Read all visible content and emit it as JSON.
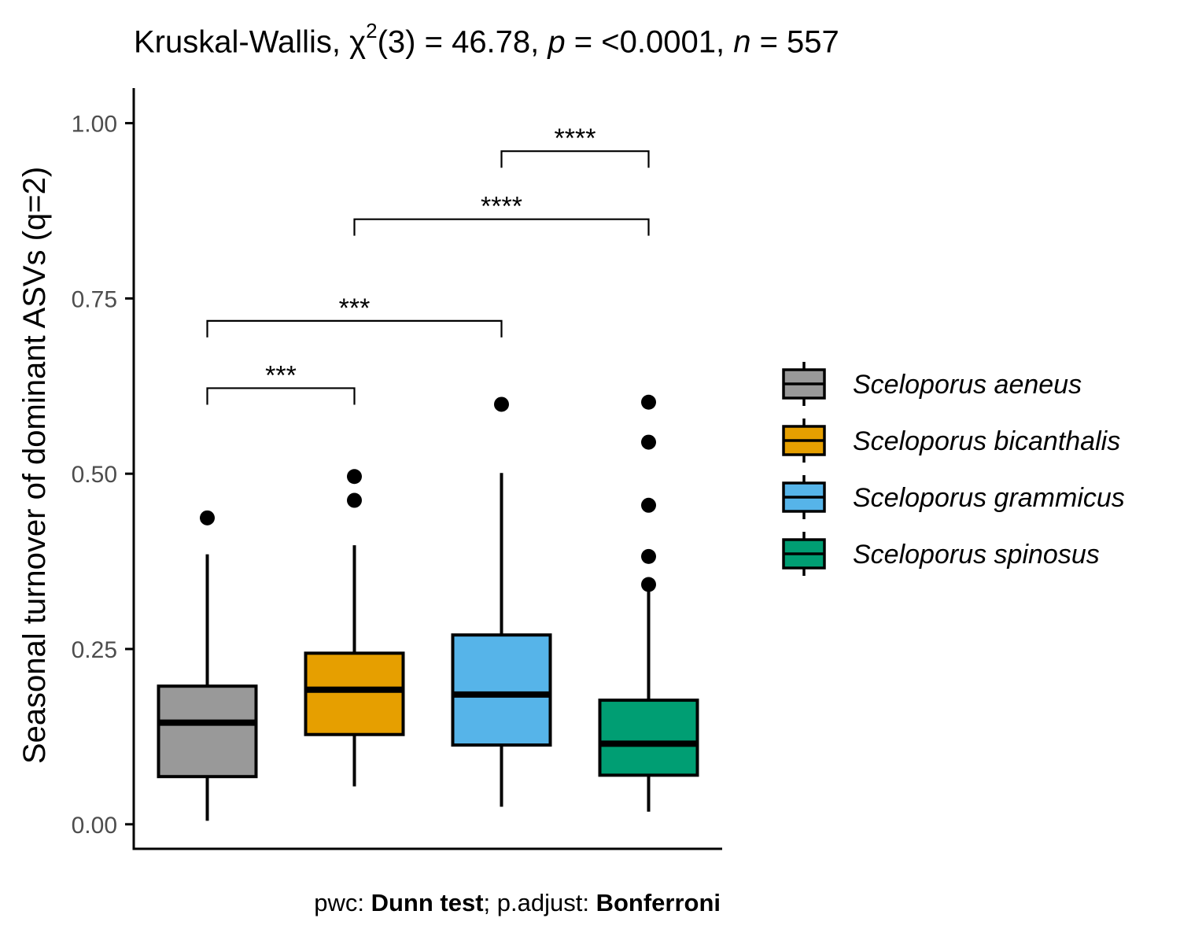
{
  "title": {
    "test_name": "Kruskal-Wallis,",
    "chi_symbol": "χ",
    "chi_sup": "2",
    "df_text": "(3) = 46.78,",
    "p_symbol": "p",
    "p_text": "= <0.0001,",
    "n_symbol": "n",
    "n_text": "= 557"
  },
  "caption": {
    "pwc_label": "pwc:",
    "pwc_value": "Dunn test",
    "adjust_label": "; p.adjust:",
    "adjust_value": "Bonferroni"
  },
  "chart_data": {
    "type": "boxplot",
    "ylabel": "Seasonal turnover of dominant ASVs (q=2)",
    "xlabel": "",
    "ylim": [
      -0.035,
      1.05
    ],
    "yticks": [
      0.0,
      0.25,
      0.5,
      0.75,
      1.0
    ],
    "ytick_labels": [
      "0.00",
      "0.25",
      "0.50",
      "0.75",
      "1.00"
    ],
    "grid": false,
    "legend_position": "right",
    "groups": [
      {
        "name": "Sceloporus aeneus",
        "color": "#999999",
        "whisker_low": 0.005,
        "q1": 0.068,
        "median": 0.145,
        "q3": 0.197,
        "whisker_high": 0.385,
        "outliers": [
          0.437
        ]
      },
      {
        "name": "Sceloporus bicanthalis",
        "color": "#E69F00",
        "whisker_low": 0.054,
        "q1": 0.128,
        "median": 0.192,
        "q3": 0.244,
        "whisker_high": 0.398,
        "outliers": [
          0.462,
          0.496
        ]
      },
      {
        "name": "Sceloporus grammicus",
        "color": "#56B4E9",
        "whisker_low": 0.025,
        "q1": 0.113,
        "median": 0.185,
        "q3": 0.27,
        "whisker_high": 0.501,
        "outliers": [
          0.599
        ]
      },
      {
        "name": "Sceloporus spinosus",
        "color": "#009E73",
        "whisker_low": 0.018,
        "q1": 0.07,
        "median": 0.115,
        "q3": 0.177,
        "whisker_high": 0.333,
        "outliers": [
          0.342,
          0.382,
          0.455,
          0.545,
          0.602
        ]
      }
    ],
    "comparisons": [
      {
        "from": 0,
        "to": 1,
        "y": 0.622,
        "label": "***"
      },
      {
        "from": 0,
        "to": 2,
        "y": 0.718,
        "label": "***"
      },
      {
        "from": 1,
        "to": 3,
        "y": 0.863,
        "label": "****"
      },
      {
        "from": 2,
        "to": 3,
        "y": 0.96,
        "label": "****"
      }
    ]
  }
}
